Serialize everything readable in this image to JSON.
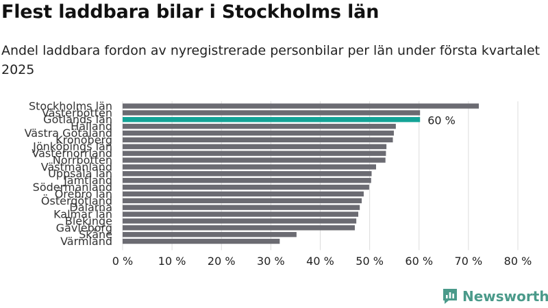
{
  "title": "Flest laddbara bilar i Stockholms län",
  "subtitle": "Andel laddbara fordon av nyregistrerade personbilar per län under första kvartalet 2025",
  "brand": {
    "name": "Newsworthy",
    "icon": "newsworthy-logo-icon"
  },
  "colors": {
    "bar": "#6b6b72",
    "highlight": "#13a397",
    "grid": "#dcdcdc",
    "brand": "#4a9a8a"
  },
  "chart_data": {
    "type": "bar",
    "orientation": "horizontal",
    "title": "Flest laddbara bilar i Stockholms län",
    "subtitle": "Andel laddbara fordon av nyregistrerade personbilar per län under första kvartalet 2025",
    "xlim": [
      0,
      80
    ],
    "xticks": [
      0,
      10,
      20,
      30,
      40,
      50,
      60,
      70,
      80
    ],
    "x_tick_suffix": " %",
    "grid": true,
    "highlight_index": 2,
    "highlight_label": "60 %",
    "categories": [
      "Stockholms län",
      "Västerbotten",
      "Gotlands län",
      "Halland",
      "Västra Götaland",
      "Kronoberg",
      "Jönköpings län",
      "Västernorrland",
      "Norrbotten",
      "Västmanland",
      "Uppsala län",
      "Jämtland",
      "Södermanland",
      "Örebro län",
      "Östergötland",
      "Dalarna",
      "Kalmar län",
      "Blekinge",
      "Gävleborg",
      "Skåne",
      "Värmland"
    ],
    "values": [
      72.1,
      60.2,
      60.2,
      55.3,
      54.9,
      54.7,
      53.4,
      53.3,
      53.2,
      51.3,
      50.4,
      50.3,
      49.9,
      48.8,
      48.4,
      48.0,
      47.7,
      47.3,
      47.0,
      35.2,
      31.8
    ]
  }
}
